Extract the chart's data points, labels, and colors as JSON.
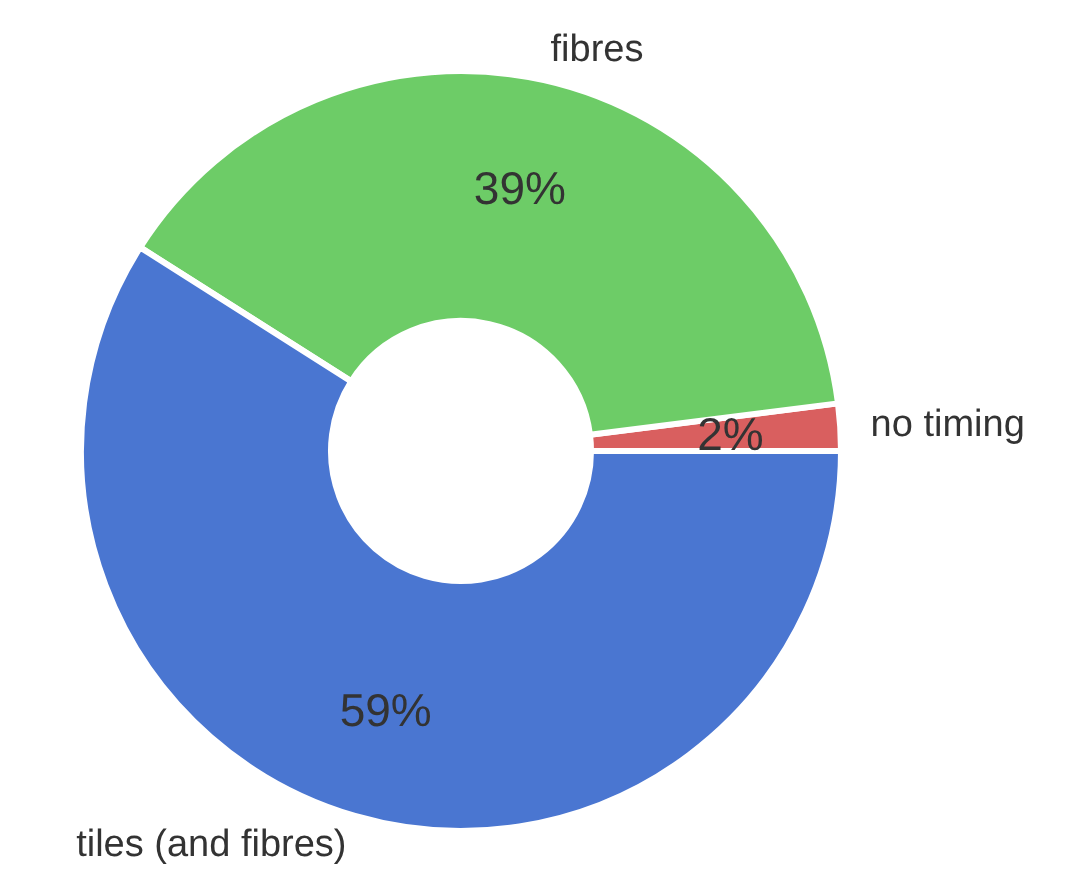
{
  "chart_data": {
    "type": "donut",
    "categories": [
      "no timing",
      "fibres",
      "tiles (and fibres)"
    ],
    "values": [
      2,
      39,
      59
    ],
    "colors": [
      "#d95f5f",
      "#6dcc67",
      "#4a76d1"
    ],
    "value_labels": [
      "2%",
      "39%",
      "59%"
    ]
  }
}
